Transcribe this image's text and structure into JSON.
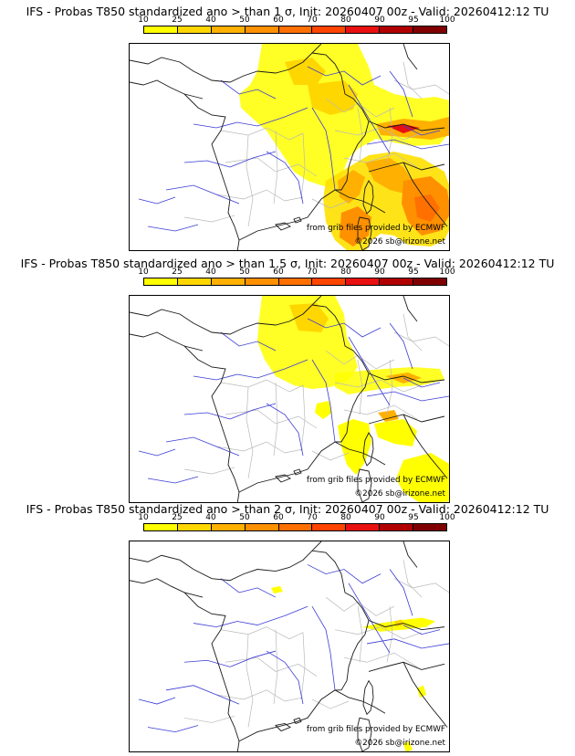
{
  "colorbar": {
    "labels": [
      "10",
      "25",
      "40",
      "50",
      "60",
      "70",
      "80",
      "90",
      "95",
      "100"
    ],
    "colors": [
      "#ffff00",
      "#ffd700",
      "#ffb000",
      "#ff9000",
      "#ff7000",
      "#ff4500",
      "#e81010",
      "#b00000",
      "#800000",
      "#5a0000"
    ]
  },
  "panels": [
    {
      "title": "IFS - Probas T850  standardized ano > than 1 σ, Init: 20260407 00z - Valid: 20260412:12 TU",
      "credit_source": "from grib files provided by ECMWF",
      "credit_copyright": "©2026 sb@irizone.net"
    },
    {
      "title": "IFS - Probas T850  standardized ano > than 1.5 σ, Init: 20260407 00z - Valid: 20260412:12 TU",
      "credit_source": "from grib files provided by ECMWF",
      "credit_copyright": "©2026 sb@irizone.net"
    },
    {
      "title": "IFS - Probas T850  standardized ano > than 2 σ, Init: 20260407 00z - Valid: 20260412:12 TU",
      "credit_source": "from grib files provided by ECMWF",
      "credit_copyright": "©2026 sb@irizone.net"
    }
  ]
}
